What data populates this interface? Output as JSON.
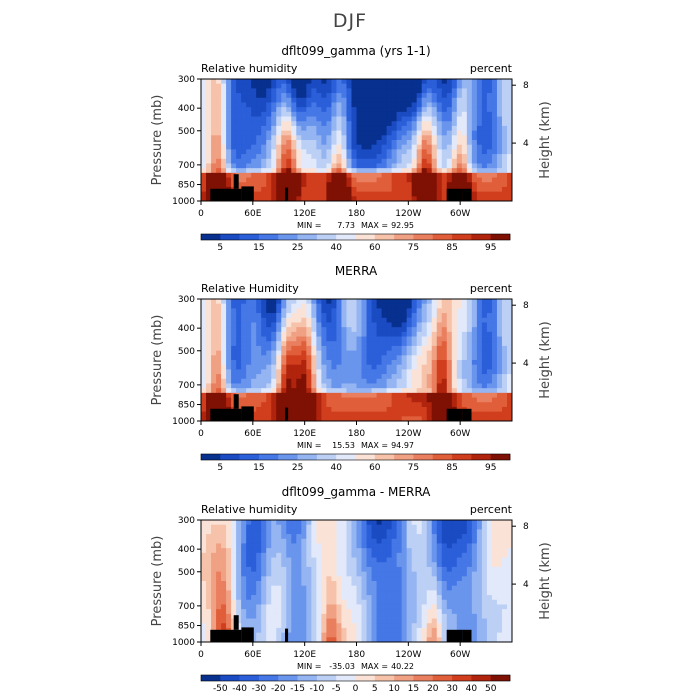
{
  "page_title": "DJF",
  "colors": {
    "seq_scale": [
      "#07308f",
      "#1a4bc2",
      "#2b5fd9",
      "#4577e6",
      "#6a95ec",
      "#94b4f2",
      "#bcd0f6",
      "#e2e9fa",
      "#fbe2d6",
      "#f6c2aa",
      "#f0a184",
      "#e97f5e",
      "#e05f3a",
      "#d03e1e",
      "#b0230c",
      "#7e1004"
    ],
    "diff_scale": [
      "#07308f",
      "#1a4bc2",
      "#2b5fd9",
      "#4577e6",
      "#6a95ec",
      "#94b4f2",
      "#bcd0f6",
      "#e2e9fa",
      "#fbe2d6",
      "#f6c2aa",
      "#f0a184",
      "#e97f5e",
      "#e05f3a",
      "#d03e1e",
      "#b0230c",
      "#7e1004"
    ],
    "topography": "#000000"
  },
  "chart_data": [
    {
      "type": "heatmap",
      "title": "dflt099_gamma (yrs 1-1)",
      "left_label": "Relative humidity",
      "right_label": "percent",
      "ylabel": "Pressure (mb)",
      "y2label": "Height (km)",
      "x_ticks": [
        "0",
        "60E",
        "120E",
        "180",
        "120W",
        "60W"
      ],
      "y_ticks": [
        "300",
        "400",
        "500",
        "700",
        "850",
        "1000"
      ],
      "y2_ticks": [
        "8",
        "4"
      ],
      "ylim": [
        1000,
        300
      ],
      "min_label": "MIN =",
      "min_value": "7.73",
      "max_label": "MAX =",
      "max_value": "92.95",
      "colorbar_ticks": [
        "5",
        "15",
        "25",
        "40",
        "60",
        "75",
        "85",
        "95"
      ],
      "dry_longitudes": [
        40,
        70,
        110,
        150,
        180,
        200,
        220,
        250,
        290,
        330
      ],
      "moist_longitudes": [
        20,
        100,
        160,
        260,
        300
      ]
    },
    {
      "type": "heatmap",
      "title": "MERRA",
      "left_label": "Relative Humidity",
      "right_label": "percent",
      "ylabel": "Pressure (mb)",
      "y2label": "Height (km)",
      "x_ticks": [
        "0",
        "60E",
        "120E",
        "180",
        "120W",
        "60W"
      ],
      "y_ticks": [
        "300",
        "400",
        "500",
        "700",
        "850",
        "1000"
      ],
      "y2_ticks": [
        "8",
        "4"
      ],
      "ylim": [
        1000,
        300
      ],
      "min_label": "MIN =",
      "min_value": "15.53",
      "max_label": "MAX =",
      "max_value": "94.97",
      "colorbar_ticks": [
        "5",
        "15",
        "25",
        "40",
        "60",
        "75",
        "85",
        "95"
      ],
      "dry_longitudes": [
        40,
        80,
        150,
        200,
        230,
        330
      ],
      "moist_longitudes": [
        20,
        100,
        120,
        280
      ]
    },
    {
      "type": "heatmap",
      "title": "dflt099_gamma - MERRA",
      "left_label": "Relative humidity",
      "right_label": "percent",
      "ylabel": "Pressure (mb)",
      "y2label": "Height (km)",
      "x_ticks": [
        "0",
        "60E",
        "120E",
        "180",
        "120W",
        "60W"
      ],
      "y_ticks": [
        "300",
        "400",
        "500",
        "700",
        "850",
        "1000"
      ],
      "y2_ticks": [
        "8",
        "4"
      ],
      "ylim": [
        1000,
        300
      ],
      "min_label": "MIN =",
      "min_value": "-35.03",
      "max_label": "MAX =",
      "max_value": "40.22",
      "colorbar_ticks": [
        "-50",
        "-40",
        "-30",
        "-20",
        "-15",
        "-10",
        "-5",
        "0",
        "5",
        "10",
        "15",
        "20",
        "30",
        "40",
        "50"
      ],
      "dry_longitudes": [
        60,
        110,
        200,
        225,
        280,
        310
      ],
      "moist_longitudes": [
        20,
        30,
        150,
        270
      ]
    }
  ]
}
